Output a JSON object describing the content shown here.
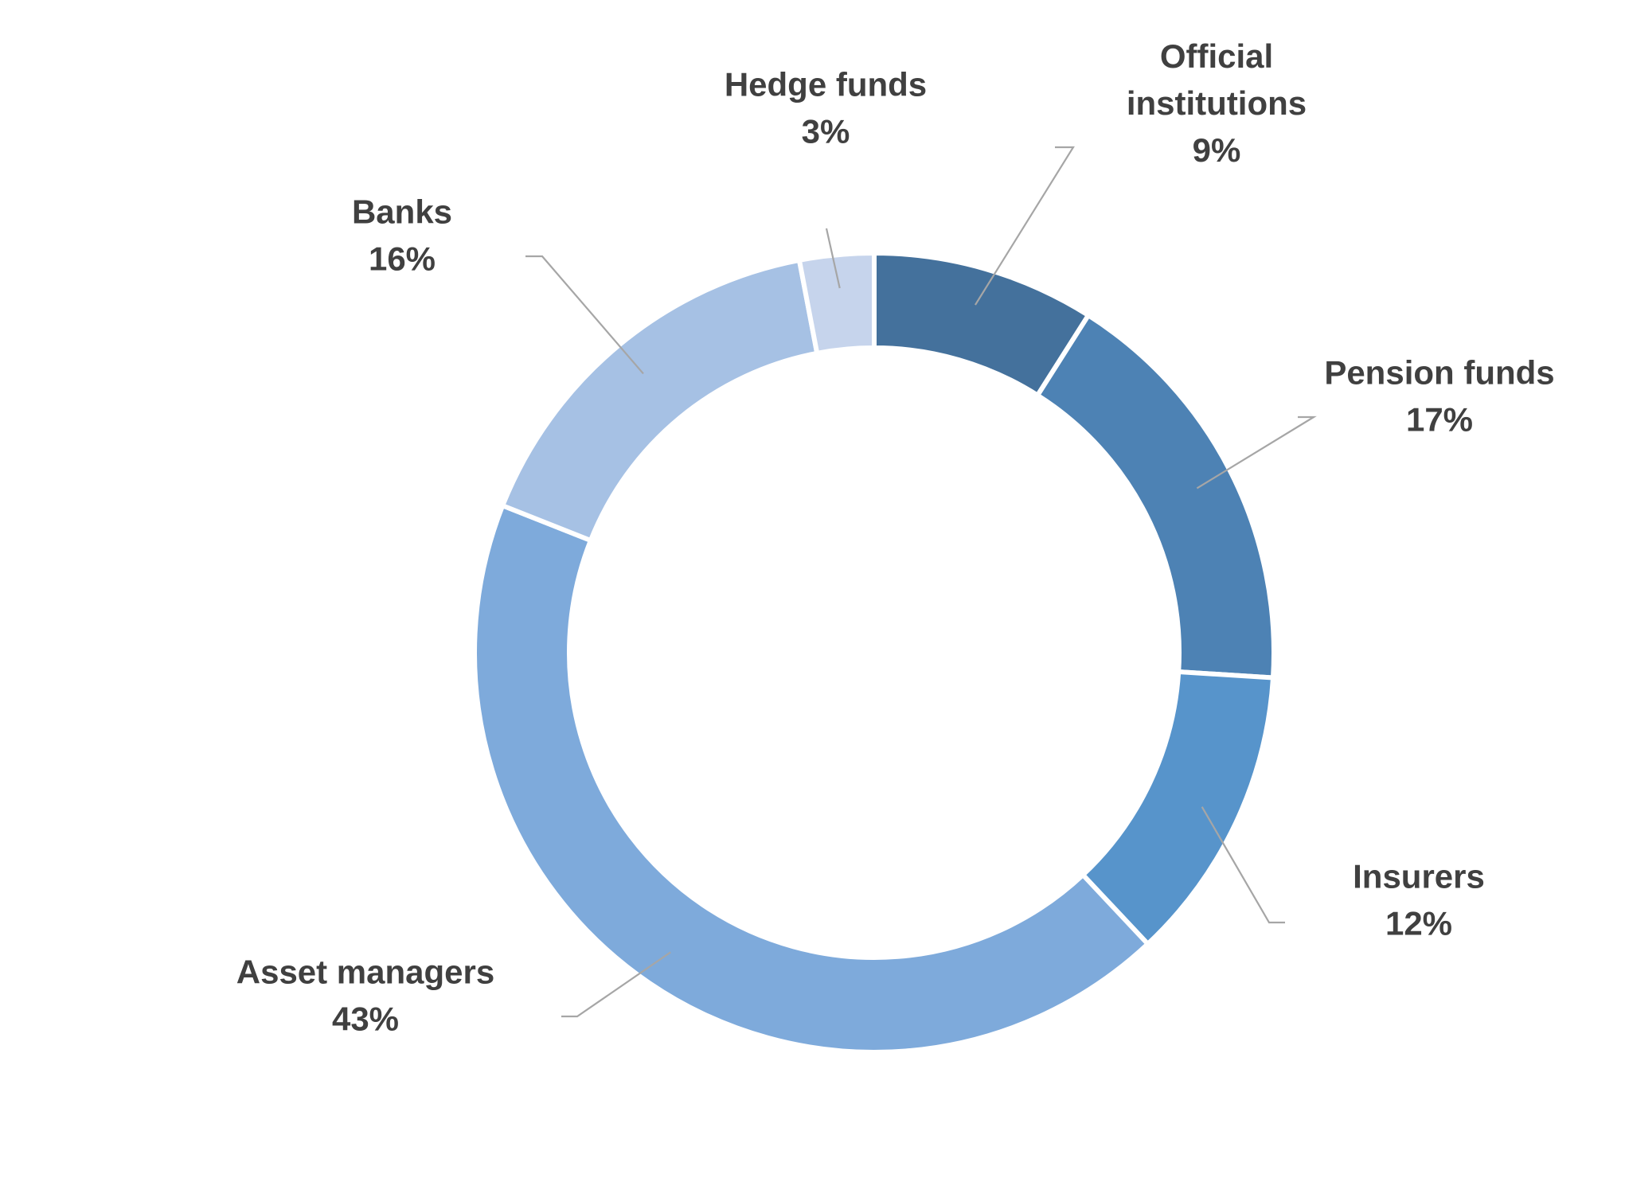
{
  "chart_data": {
    "type": "pie",
    "variant": "donut",
    "title": "",
    "start_angle_deg": 0,
    "direction": "clockwise",
    "legend": "none",
    "slices": [
      {
        "name_lines": [
          "Official",
          "institutions"
        ],
        "value": 9,
        "label": "9%",
        "color": "#44719c"
      },
      {
        "name_lines": [
          "Pension funds"
        ],
        "value": 17,
        "label": "17%",
        "color": "#4d82b4"
      },
      {
        "name_lines": [
          "Insurers"
        ],
        "value": 12,
        "label": "12%",
        "color": "#5794cb"
      },
      {
        "name_lines": [
          "Asset managers"
        ],
        "value": 43,
        "label": "43%",
        "color": "#7eaadb"
      },
      {
        "name_lines": [
          "Banks"
        ],
        "value": 16,
        "label": "16%",
        "color": "#a6c1e4"
      },
      {
        "name_lines": [
          "Hedge funds"
        ],
        "value": 3,
        "label": "3%",
        "color": "#c6d4ec"
      }
    ]
  }
}
